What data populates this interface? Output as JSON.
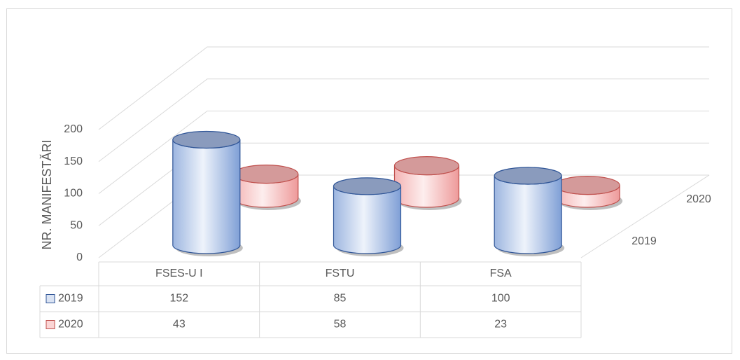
{
  "chart_data": {
    "type": "bar3d-cylinder",
    "y_label": "NR. MANIFESTĂRI",
    "categories": [
      "FSES-U I",
      "FSTU",
      "FSA"
    ],
    "series": [
      {
        "name": "2019",
        "color": "#8eaadc",
        "values": [
          152,
          85,
          100
        ]
      },
      {
        "name": "2020",
        "color": "#f4a8a8",
        "values": [
          43,
          58,
          23
        ]
      }
    ],
    "ylim": [
      0,
      200
    ],
    "yticks": [
      0,
      50,
      100,
      150,
      200
    ],
    "grid": true,
    "data_table": true
  }
}
